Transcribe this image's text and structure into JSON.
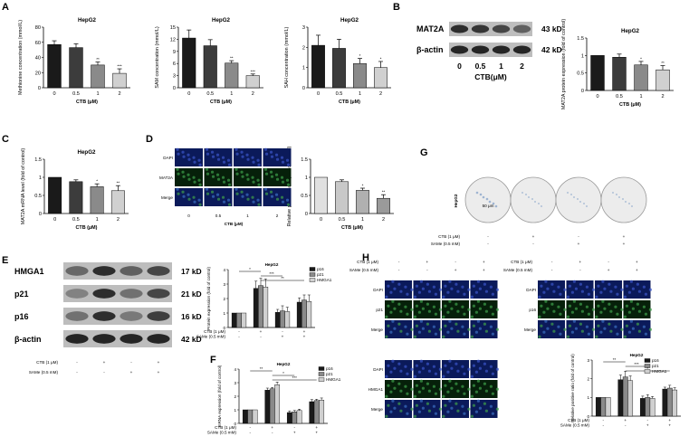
{
  "panels": {
    "A": "A",
    "B": "B",
    "C": "C",
    "D": "D",
    "E": "E",
    "F": "F",
    "G": "G",
    "H": "H"
  },
  "common": {
    "cell_line": "HepG2",
    "ctb_axis": "CTB (μM)",
    "ctb_axis_blot": "CTB(μM)",
    "doses": [
      "0",
      "0.5",
      "1",
      "2"
    ],
    "ctb_row": "CTB (1 μM)",
    "same_row": "SAMe (0.5 mM)",
    "treat_ctb": [
      "-",
      "+",
      "-",
      "+"
    ],
    "treat_same": [
      "-",
      "-",
      "+",
      "+"
    ]
  },
  "blots": {
    "B": {
      "rows": [
        {
          "label": "MAT2A",
          "kd": "43 kD"
        },
        {
          "label": "β-actin",
          "kd": "42 kD"
        }
      ]
    },
    "E": {
      "rows": [
        {
          "label": "HMGA1",
          "kd": "17 kD"
        },
        {
          "label": "p21",
          "kd": "21 kD"
        },
        {
          "label": "p16",
          "kd": "16 kD"
        },
        {
          "label": "β-actin",
          "kd": "42 kD"
        }
      ]
    }
  },
  "images": {
    "D_rows": [
      "DAPI",
      "MAT2A",
      "Merge"
    ],
    "H1_rows": [
      "DAPI",
      "p21",
      "Merge"
    ],
    "H2_rows": [
      "DAPI",
      "p16",
      "Merge"
    ],
    "H3_rows": [
      "DAPI",
      "HMGA1",
      "Merge"
    ],
    "G_label": "HepG2",
    "scale": "50 μm"
  },
  "colors": {
    "black": "#1a1a1a",
    "dark": "#3c3c3c",
    "grey": "#8a8a8a",
    "light": "#d0d0d0",
    "blue_cells": "#1c2c78",
    "green_cells": "#2f8f3a"
  },
  "chart_data": [
    {
      "id": "A1",
      "type": "bar",
      "title": "HepG2",
      "ylabel": "Methionine concentration (mmol/L)",
      "xlabel": "CTB (μM)",
      "categories": [
        "0",
        "0.5",
        "1",
        "2"
      ],
      "values": [
        57,
        53,
        30,
        19
      ],
      "errors": [
        5,
        5,
        4,
        6
      ],
      "sig": [
        "",
        "",
        "**",
        "***"
      ],
      "ylim": [
        0,
        80
      ],
      "yticks": [
        0,
        20,
        40,
        60,
        80
      ]
    },
    {
      "id": "A2",
      "type": "bar",
      "title": "HepG2",
      "ylabel": "SAM concentration (mmol/L)",
      "xlabel": "CTB (μM)",
      "categories": [
        "0",
        "0.5",
        "1",
        "2"
      ],
      "values": [
        12.3,
        10.4,
        6.1,
        3.0
      ],
      "errors": [
        2.0,
        1.5,
        0.6,
        0.4
      ],
      "sig": [
        "",
        "",
        "**",
        "***"
      ],
      "ylim": [
        0,
        15
      ],
      "yticks": [
        0,
        3,
        6,
        9,
        12,
        15
      ]
    },
    {
      "id": "A3",
      "type": "bar",
      "title": "HepG2",
      "ylabel": "SAH concentration (mmol/L)",
      "xlabel": "CTB (μM)",
      "categories": [
        "0",
        "0.5",
        "1",
        "2"
      ],
      "values": [
        2.1,
        1.95,
        1.2,
        1.0
      ],
      "errors": [
        0.5,
        0.45,
        0.25,
        0.3
      ],
      "sig": [
        "",
        "",
        "*",
        "*"
      ],
      "ylim": [
        0,
        3.0
      ],
      "yticks": [
        0,
        1,
        2,
        3
      ]
    },
    {
      "id": "B",
      "type": "bar",
      "title": "HepG2",
      "ylabel": "MAT2A protein expression (fold of control)",
      "xlabel": "CTB (μM)",
      "categories": [
        "0",
        "0.5",
        "1",
        "2"
      ],
      "values": [
        1.0,
        0.95,
        0.73,
        0.59
      ],
      "errors": [
        0,
        0.09,
        0.1,
        0.12
      ],
      "sig": [
        "",
        "",
        "*",
        "**"
      ],
      "ylim": [
        0,
        1.5
      ],
      "yticks": [
        0.0,
        0.5,
        1.0,
        1.5
      ]
    },
    {
      "id": "C",
      "type": "bar",
      "title": "HepG2",
      "ylabel": "MAT2A mRNA level (fold of control)",
      "xlabel": "CTB (μM)",
      "categories": [
        "0",
        "0.5",
        "1",
        "2"
      ],
      "values": [
        1.0,
        0.88,
        0.74,
        0.63
      ],
      "errors": [
        0,
        0.05,
        0.08,
        0.14
      ],
      "sig": [
        "",
        "",
        "*",
        "**"
      ],
      "ylim": [
        0,
        1.5
      ],
      "yticks": [
        0.0,
        0.5,
        1.0,
        1.5
      ]
    },
    {
      "id": "D",
      "type": "bar",
      "title": "",
      "ylabel": "Relative positive ratio (fold of control)",
      "xlabel": "CTB (μM)",
      "categories": [
        "0",
        "0.5",
        "1",
        "2"
      ],
      "values": [
        1.0,
        0.88,
        0.64,
        0.42
      ],
      "errors": [
        0,
        0.05,
        0.06,
        0.1
      ],
      "sig": [
        "",
        "",
        "*",
        "**"
      ],
      "ylim": [
        0,
        1.5
      ],
      "yticks": [
        0.0,
        0.5,
        1.0,
        1.5
      ]
    },
    {
      "id": "E",
      "type": "grouped-bar",
      "title": "HepG2",
      "ylabel": "Protein expression (fold of control)",
      "xlabel": "",
      "series": [
        {
          "name": "p16",
          "values": [
            1.0,
            2.7,
            1.05,
            1.75
          ],
          "errors": [
            0,
            0.5,
            0.2,
            0.3
          ]
        },
        {
          "name": "p21",
          "values": [
            1.0,
            2.9,
            1.15,
            1.9
          ],
          "errors": [
            0,
            0.5,
            0.35,
            0.35
          ]
        },
        {
          "name": "HMGA1",
          "values": [
            1.0,
            2.8,
            1.1,
            1.8
          ],
          "errors": [
            0,
            0.55,
            0.3,
            0.45
          ]
        }
      ],
      "sig_brackets": [
        "*",
        "***",
        "**"
      ],
      "ylim": [
        0,
        4
      ],
      "yticks": [
        0,
        1,
        2,
        3,
        4
      ]
    },
    {
      "id": "F",
      "type": "grouped-bar",
      "title": "HepG2",
      "ylabel": "mRNA expression (fold of control)",
      "xlabel": "",
      "series": [
        {
          "name": "p16",
          "values": [
            1.0,
            2.45,
            0.8,
            1.6
          ],
          "errors": [
            0,
            0.15,
            0.12,
            0.15
          ]
        },
        {
          "name": "p21",
          "values": [
            1.0,
            2.55,
            0.85,
            1.68
          ],
          "errors": [
            0,
            0.1,
            0.1,
            0.1
          ]
        },
        {
          "name": "HMGA1",
          "values": [
            1.0,
            2.85,
            0.95,
            1.72
          ],
          "errors": [
            0,
            0.2,
            0.1,
            0.15
          ]
        }
      ],
      "sig_brackets": [
        "**",
        "*",
        "***"
      ],
      "ylim": [
        0,
        4
      ],
      "yticks": [
        0,
        1,
        2,
        3,
        4
      ]
    },
    {
      "id": "H",
      "type": "grouped-bar",
      "title": "HepG2",
      "ylabel": "Relative positive ratio (fold of control)",
      "xlabel": "",
      "series": [
        {
          "name": "p16",
          "values": [
            1.0,
            1.95,
            0.95,
            1.45
          ],
          "errors": [
            0,
            0.25,
            0.12,
            0.1
          ]
        },
        {
          "name": "p21",
          "values": [
            1.0,
            2.1,
            1.0,
            1.5
          ],
          "errors": [
            0,
            0.3,
            0.15,
            0.15
          ]
        },
        {
          "name": "HMGA1",
          "values": [
            1.0,
            1.9,
            0.95,
            1.4
          ],
          "errors": [
            0,
            0.25,
            0.1,
            0.12
          ]
        }
      ],
      "sig_brackets": [
        "**",
        "***",
        "*"
      ],
      "ylim": [
        0,
        3
      ],
      "yticks": [
        0,
        1,
        2,
        3
      ]
    }
  ]
}
